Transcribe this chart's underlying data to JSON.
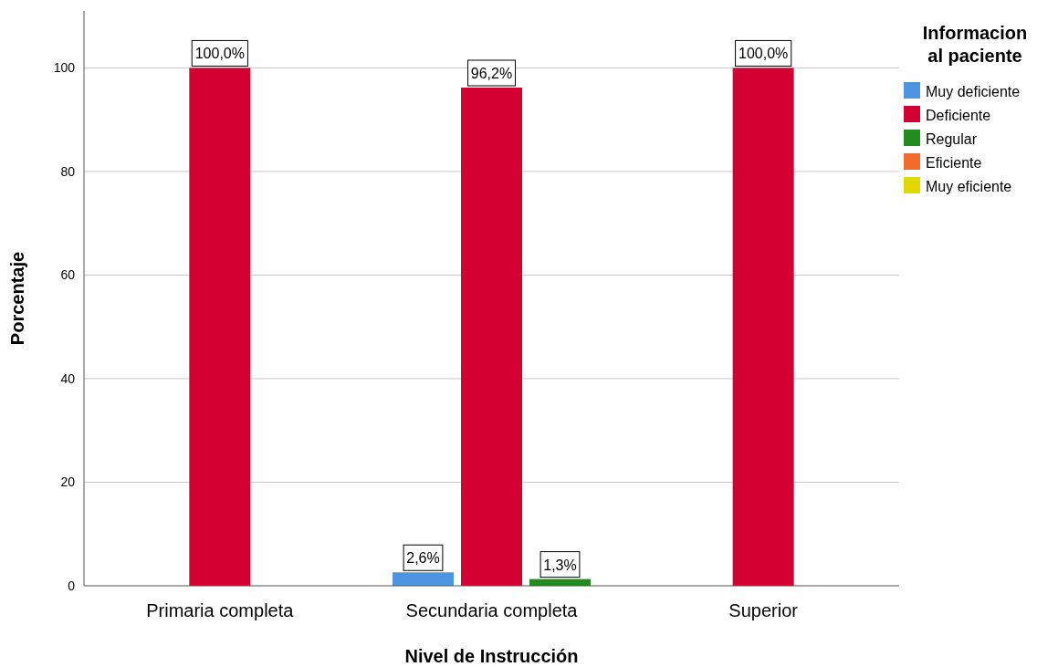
{
  "chart_data": {
    "type": "bar",
    "xlabel": "Nivel de Instrucción",
    "ylabel": "Porcentaje",
    "legend_title": "Informacion al paciente",
    "categories": [
      "Primaria completa",
      "Secundaria completa",
      "Superior"
    ],
    "series": [
      {
        "name": "Muy deficiente",
        "color": "#4f94e0",
        "values": [
          null,
          2.6,
          null
        ],
        "value_labels": [
          null,
          "2,6%",
          null
        ]
      },
      {
        "name": "Deficiente",
        "color": "#d50032",
        "values": [
          100,
          96.2,
          100
        ],
        "value_labels": [
          "100,0%",
          "96,2%",
          "100,0%"
        ]
      },
      {
        "name": "Regular",
        "color": "#228b22",
        "values": [
          null,
          1.3,
          null
        ],
        "value_labels": [
          null,
          "1,3%",
          null
        ]
      },
      {
        "name": "Eficiente",
        "color": "#f26b2d",
        "values": [
          null,
          null,
          null
        ]
      },
      {
        "name": "Muy eficiente",
        "color": "#e3d700",
        "values": [
          null,
          null,
          null
        ]
      }
    ],
    "ylim": [
      0,
      111
    ],
    "yticks": [
      0,
      20,
      40,
      60,
      80,
      100
    ],
    "grid": "y",
    "legend": "top right"
  }
}
